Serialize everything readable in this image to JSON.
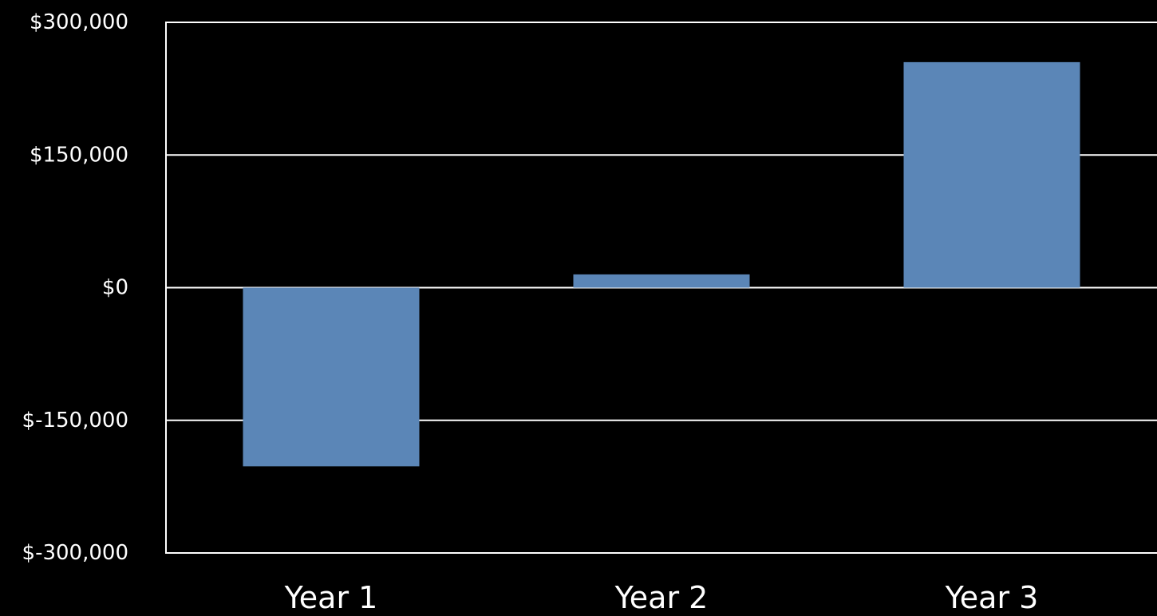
{
  "chart_data": {
    "type": "bar",
    "categories": [
      "Year 1",
      "Year 2",
      "Year 3"
    ],
    "values": [
      -202000,
      15000,
      255000
    ],
    "y_ticks": [
      300000,
      150000,
      0,
      -150000,
      -300000
    ],
    "y_tick_labels": [
      "$300,000",
      "$150,000",
      "$0",
      "$-150,000",
      "$-300,000"
    ],
    "ylim": [
      -300000,
      300000
    ],
    "title": "",
    "xlabel": "",
    "ylabel": "",
    "grid": true,
    "legend": "none",
    "colors": {
      "bar": "#5b86b7",
      "axis": "#ffffff",
      "grid": "#ffffff",
      "text": "#ffffff",
      "background": "#000000"
    }
  }
}
